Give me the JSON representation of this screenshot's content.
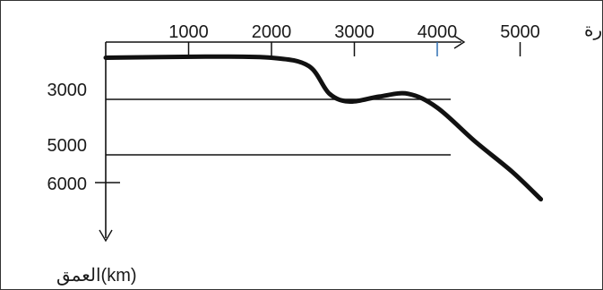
{
  "chart_data": {
    "type": "line",
    "x_axis": {
      "label": "درجة الحرارة",
      "ticks": [
        1000,
        2000,
        3000,
        4000,
        5000
      ],
      "tick_labels": [
        "1000",
        "2000",
        "3000",
        "4000",
        "5000"
      ],
      "range": [
        0,
        6000
      ]
    },
    "y_axis": {
      "label": "العمق(km)",
      "ticks": [
        3000,
        5000,
        6000
      ],
      "tick_labels": [
        "3000",
        "5000",
        "6000"
      ],
      "inverted": true
    },
    "gridlines_at_depth": [
      3000,
      5000
    ],
    "series": [
      {
        "points": [
          {
            "x": 0,
            "y": 1500
          },
          {
            "x": 1200,
            "y": 1460
          },
          {
            "x": 2000,
            "y": 1500
          },
          {
            "x": 2450,
            "y": 1800
          },
          {
            "x": 2700,
            "y": 2800
          },
          {
            "x": 2950,
            "y": 3080
          },
          {
            "x": 3300,
            "y": 2900
          },
          {
            "x": 3650,
            "y": 2800
          },
          {
            "x": 4000,
            "y": 3300
          },
          {
            "x": 4450,
            "y": 4500
          },
          {
            "x": 4900,
            "y": 5600
          },
          {
            "x": 5250,
            "y": 6600
          }
        ]
      }
    ],
    "colors": {
      "curve": "#111111",
      "axis": "#111111",
      "tick_marker": "#2f6fb3"
    }
  }
}
